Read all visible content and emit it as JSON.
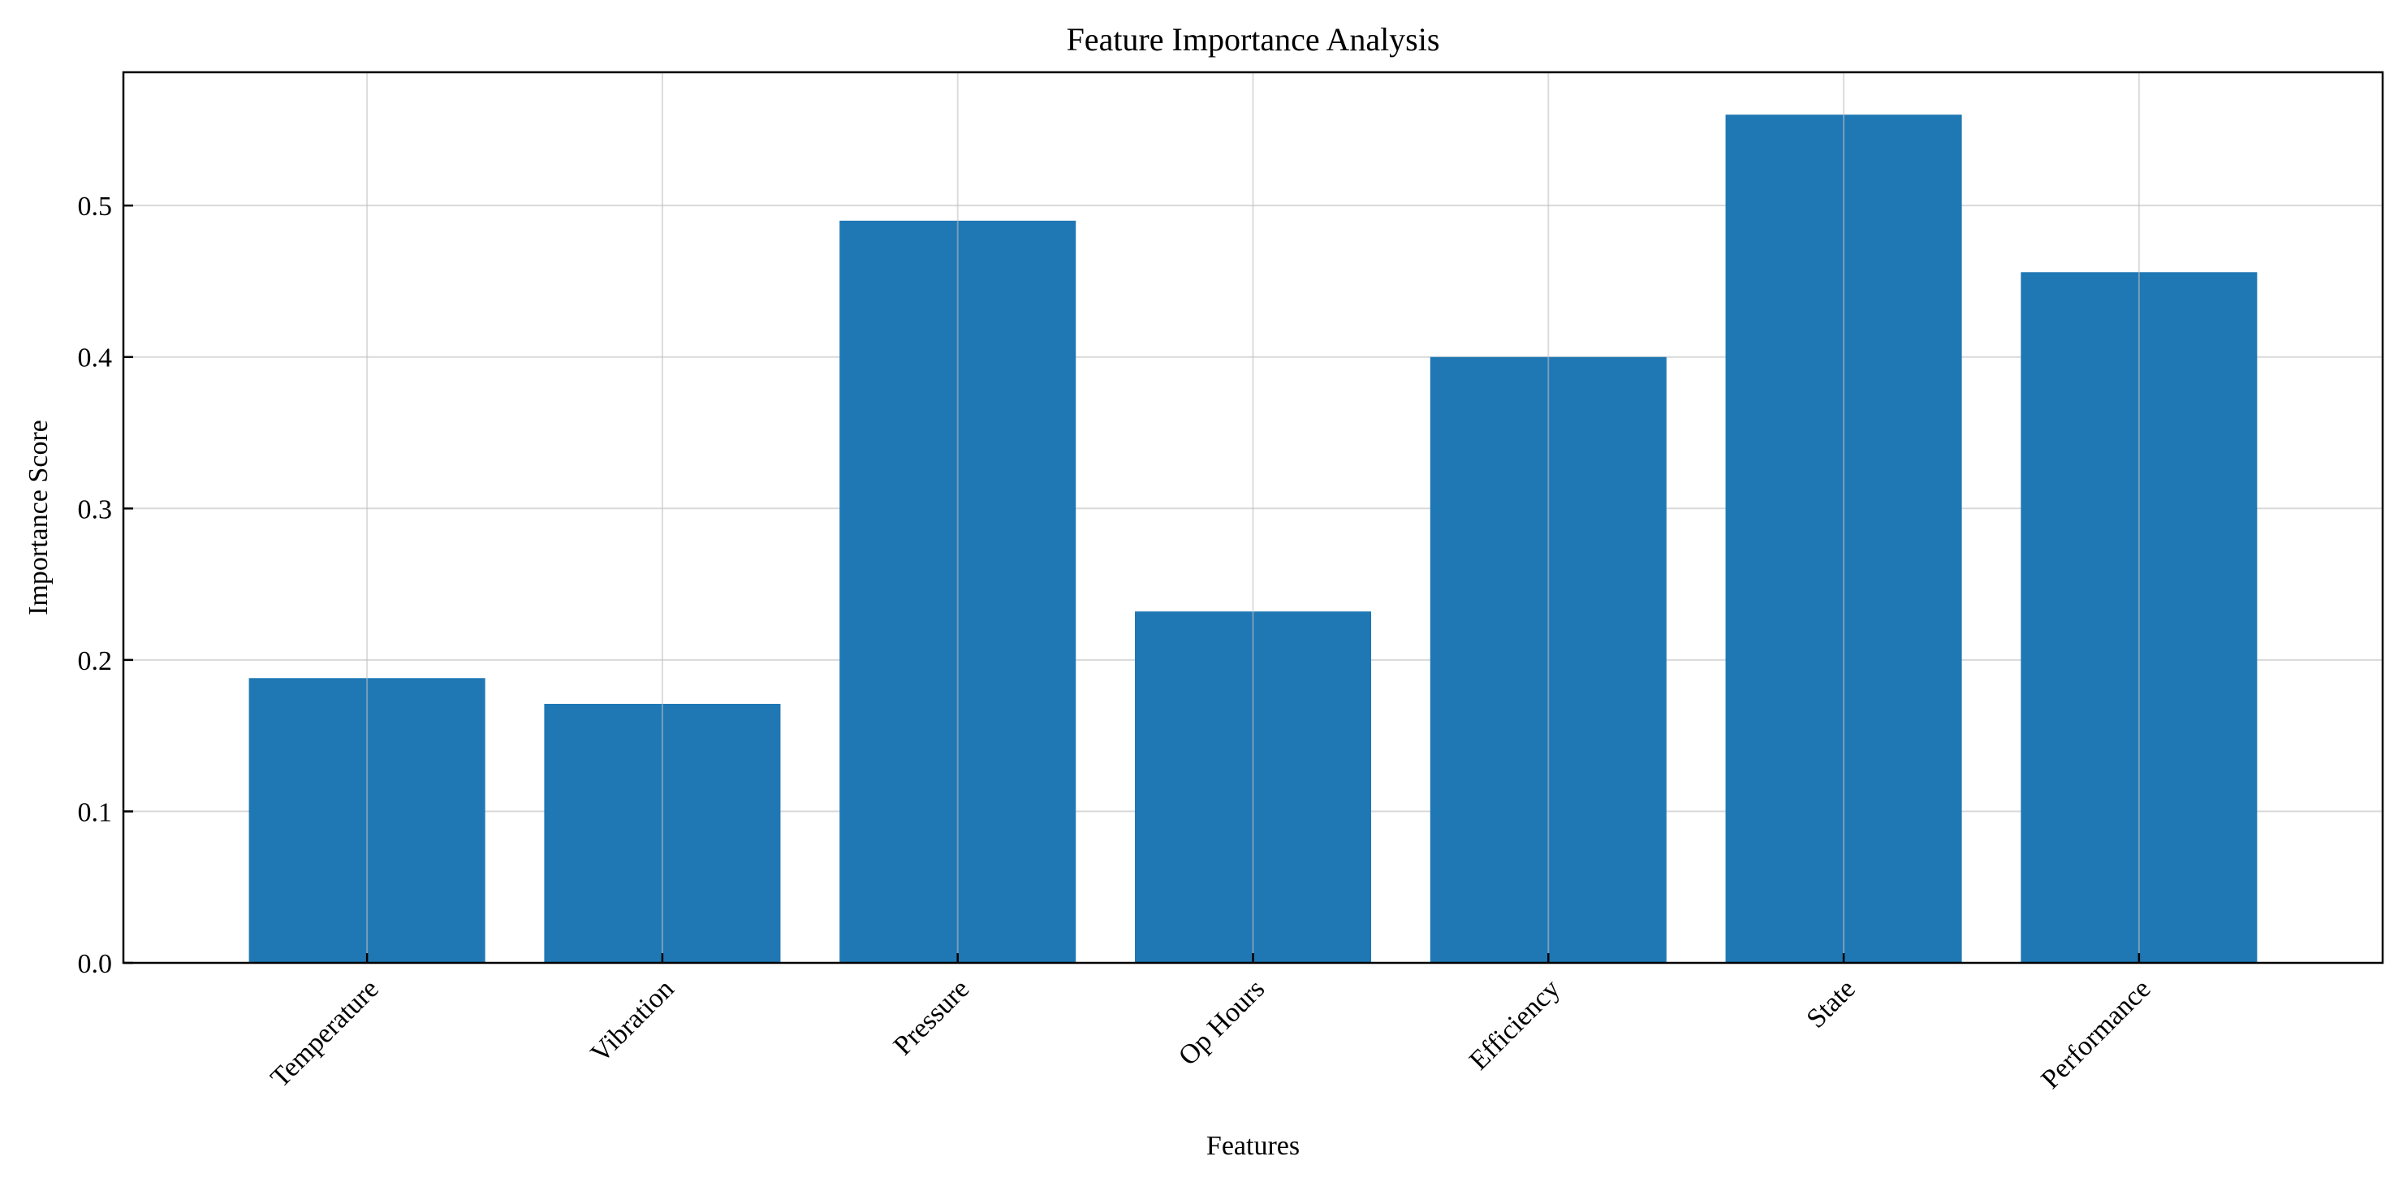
{
  "chart_data": {
    "type": "bar",
    "title": "Feature Importance Analysis",
    "xlabel": "Features",
    "ylabel": "Importance Score",
    "categories": [
      "Temperature",
      "Vibration",
      "Pressure",
      "Op Hours",
      "Efficiency",
      "State",
      "Performance"
    ],
    "values": [
      0.188,
      0.171,
      0.49,
      0.232,
      0.4,
      0.56,
      0.456
    ],
    "ylim": [
      0,
      0.588
    ],
    "yticks": [
      0.0,
      0.1,
      0.2,
      0.3,
      0.4,
      0.5
    ],
    "ytick_labels": [
      "0.0",
      "0.1",
      "0.2",
      "0.3",
      "0.4",
      "0.5"
    ],
    "grid": true,
    "bar_color": "#1f77b4",
    "grid_color": "#d9d9d9"
  }
}
